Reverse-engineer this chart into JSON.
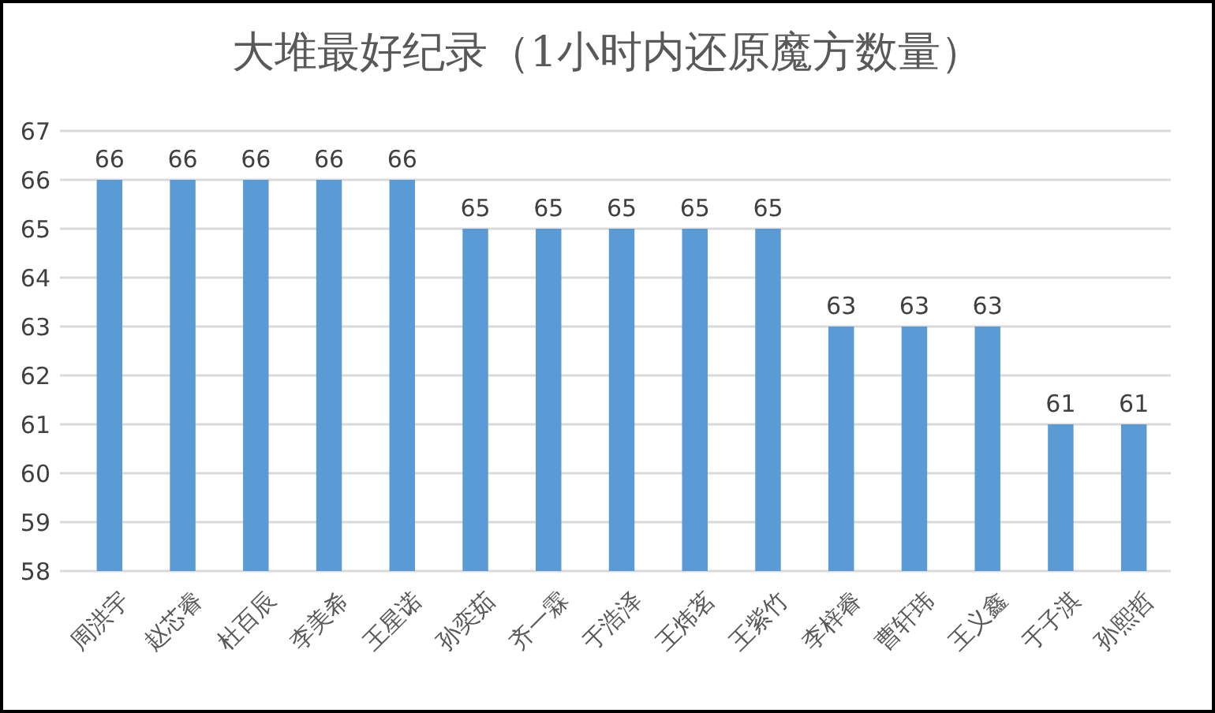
{
  "chart_data": {
    "type": "bar",
    "title": "大堆最好纪录（1小时内还原魔方数量）",
    "categories": [
      "周洪宇",
      "赵芯睿",
      "杜百辰",
      "李美希",
      "王星诺",
      "孙奕茹",
      "齐一霖",
      "于浩泽",
      "王炜茗",
      "王紫竹",
      "李梓睿",
      "曹轩玮",
      "王义鑫",
      "于子淇",
      "孙熙哲"
    ],
    "values": [
      66,
      66,
      66,
      66,
      66,
      65,
      65,
      65,
      65,
      65,
      63,
      63,
      63,
      61,
      61
    ],
    "color": "#5b9bd5",
    "ylim": [
      58,
      67
    ],
    "yticks": [
      58,
      59,
      60,
      61,
      62,
      63,
      64,
      65,
      66,
      67
    ],
    "grid": "y",
    "data_labels": true
  }
}
